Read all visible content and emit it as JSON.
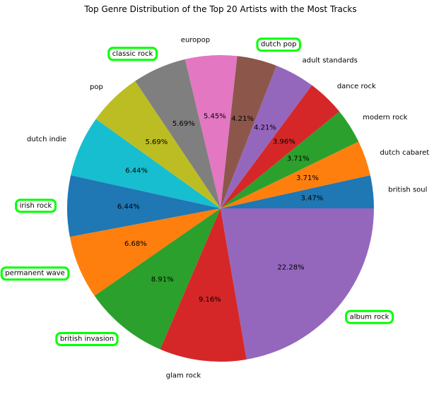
{
  "chart_data": {
    "type": "pie",
    "title": "Top Genre Distribution of the Top 20 Artists with the Most Tracks",
    "start_angle_deg": 0,
    "direction": "counterclockwise",
    "slices": [
      {
        "label": "british soul",
        "value": 3.47,
        "pct_label": "3.47%",
        "color": "#1f77b4",
        "highlighted": false
      },
      {
        "label": "dutch cabaret",
        "value": 3.71,
        "pct_label": "3.71%",
        "color": "#ff7f0e",
        "highlighted": false
      },
      {
        "label": "modern rock",
        "value": 3.71,
        "pct_label": "3.71%",
        "color": "#2ca02c",
        "highlighted": false
      },
      {
        "label": "dance rock",
        "value": 3.96,
        "pct_label": "3.96%",
        "color": "#d62728",
        "highlighted": false
      },
      {
        "label": "adult standards",
        "value": 4.21,
        "pct_label": "4.21%",
        "color": "#9467bd",
        "highlighted": false
      },
      {
        "label": "dutch pop",
        "value": 4.21,
        "pct_label": "4.21%",
        "color": "#8c564b",
        "highlighted": true
      },
      {
        "label": "europop",
        "value": 5.45,
        "pct_label": "5.45%",
        "color": "#e377c2",
        "highlighted": false
      },
      {
        "label": "classic rock",
        "value": 5.69,
        "pct_label": "5.69%",
        "color": "#7f7f7f",
        "highlighted": true
      },
      {
        "label": "pop",
        "value": 5.69,
        "pct_label": "5.69%",
        "color": "#bcbd22",
        "highlighted": false
      },
      {
        "label": "dutch indie",
        "value": 6.44,
        "pct_label": "6.44%",
        "color": "#17becf",
        "highlighted": false
      },
      {
        "label": "irish rock",
        "value": 6.44,
        "pct_label": "6.44%",
        "color": "#1f77b4",
        "highlighted": true
      },
      {
        "label": "permanent wave",
        "value": 6.68,
        "pct_label": "6.68%",
        "color": "#ff7f0e",
        "highlighted": true
      },
      {
        "label": "british invasion",
        "value": 8.91,
        "pct_label": "8.91%",
        "color": "#2ca02c",
        "highlighted": true
      },
      {
        "label": "glam rock",
        "value": 9.16,
        "pct_label": "9.16%",
        "color": "#d62728",
        "highlighted": false
      },
      {
        "label": "album rock",
        "value": 22.28,
        "pct_label": "22.28%",
        "color": "#9467bd",
        "highlighted": true
      }
    ],
    "highlight_color": "#00ff00"
  }
}
